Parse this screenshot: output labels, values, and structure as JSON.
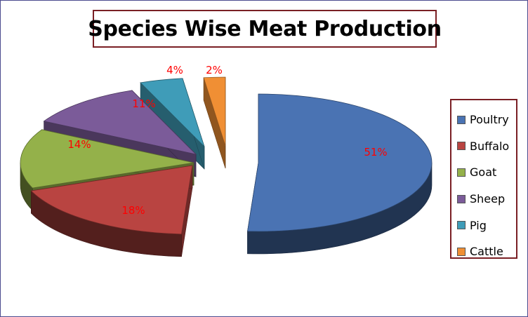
{
  "chart_data": {
    "type": "pie",
    "title": "Species Wise Meat Production",
    "categories": [
      "Poultry",
      "Buffalo",
      "Goat",
      "Sheep",
      "Pig",
      "Cattle"
    ],
    "values": [
      51,
      18,
      14,
      11,
      4,
      2
    ],
    "value_labels": [
      "51%",
      "18%",
      "14%",
      "11%",
      "4%",
      "2%"
    ],
    "colors": [
      "#4a73b3",
      "#b94441",
      "#94b14a",
      "#7b5b99",
      "#3f9cb8",
      "#f08f34"
    ],
    "label_color": "#ff0000",
    "exploded": true,
    "three_d": true,
    "legend_position": "right"
  }
}
